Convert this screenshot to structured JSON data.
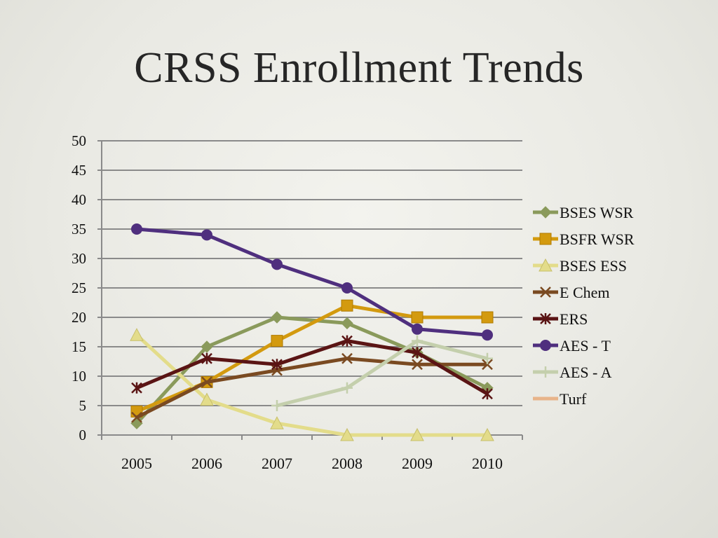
{
  "slide": {
    "title": "CRSS Enrollment Trends"
  },
  "chart_data": {
    "type": "line",
    "title": "",
    "xlabel": "",
    "ylabel": "",
    "x": [
      "2005",
      "2006",
      "2007",
      "2008",
      "2009",
      "2010"
    ],
    "ylim": [
      0,
      50
    ],
    "yticks": [
      0,
      5,
      10,
      15,
      20,
      25,
      30,
      35,
      40,
      45,
      50
    ],
    "grid": true,
    "legend_position": "right",
    "series": [
      {
        "name": "BSES WSR",
        "color": "#8a9a5b",
        "marker": "diamond",
        "values": [
          2,
          15,
          20,
          19,
          14,
          8
        ]
      },
      {
        "name": "BSFR WSR",
        "color": "#d39a0f",
        "marker": "square",
        "values": [
          4,
          9,
          16,
          22,
          20,
          20
        ]
      },
      {
        "name": "BSES ESS",
        "color": "#e3dc8a",
        "marker": "triangle",
        "values": [
          17,
          6,
          2,
          0,
          0,
          0
        ]
      },
      {
        "name": "E Chem",
        "color": "#7a4a21",
        "marker": "x",
        "values": [
          3,
          9,
          11,
          13,
          12,
          12
        ]
      },
      {
        "name": "ERS",
        "color": "#5a1414",
        "marker": "star",
        "values": [
          8,
          13,
          12,
          16,
          14,
          7
        ]
      },
      {
        "name": "AES - T",
        "color": "#4f2f7e",
        "marker": "circle",
        "values": [
          35,
          34,
          29,
          25,
          18,
          17
        ]
      },
      {
        "name": "AES - A",
        "color": "#c4cfac",
        "marker": "plus",
        "values": [
          null,
          null,
          5,
          8,
          16,
          13
        ]
      },
      {
        "name": "Turf",
        "color": "#e8b48a",
        "marker": "none",
        "values": [
          null,
          null,
          null,
          null,
          null,
          null
        ]
      }
    ]
  }
}
